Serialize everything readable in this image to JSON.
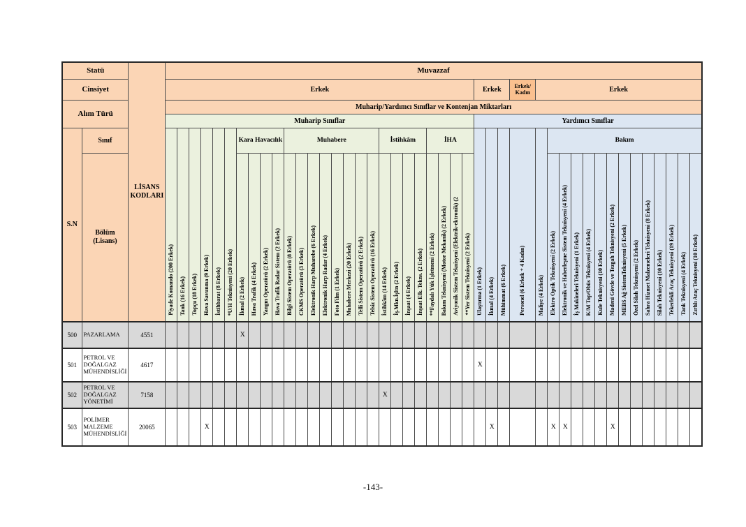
{
  "page": {
    "number_label": "-143-"
  },
  "colors": {
    "header_orange": "#FBD5B5",
    "header_orange_dark": "#FAC08F",
    "muharip_green": "#EBF1DE",
    "yardimci_blue": "#DCE6F2",
    "shaded_row_gray": "#D9D9D9"
  },
  "table": {
    "corner": {
      "statu_label": "Statü",
      "cinsiyet_label": "Cinsiyet",
      "alim_turu_label": "Alım Türü",
      "sinif_label": "Sınıf",
      "sn_label": "S.N",
      "bolum_label": "Bölüm\n(Lisans)",
      "lisans_kodlari_label": "LİSANS\nKODLARI"
    },
    "statu_value": "Muvazzaf",
    "cinsiyet_groups": [
      {
        "label": "Erkek",
        "span": 26,
        "variant": "light"
      },
      {
        "label": "Erkek",
        "span": 3,
        "variant": "light"
      },
      {
        "label": "Erkek/\nKadın",
        "span": 1,
        "variant": "dark"
      },
      {
        "label": "Erkek",
        "span": 14,
        "variant": "light"
      }
    ],
    "alim_turu_value": "Muharip/Yardımcı Sınıflar ve Kontenjan Miktarları",
    "class_bands": [
      {
        "label": "Muharip Sınıflar",
        "span": 26,
        "band": "green"
      },
      {
        "label": "Yardımcı Sınıflar",
        "span": 18,
        "band": "blue"
      }
    ],
    "columns": [
      {
        "label": "Piyade Komando  (200 Erkek)",
        "band": "green",
        "group": null
      },
      {
        "label": "Tank  (16 Erkek)",
        "band": "green",
        "group": null
      },
      {
        "label": "Topçu  (18 Erkek)",
        "band": "green",
        "group": null
      },
      {
        "label": "Hava Savunma (9 Erkek)",
        "band": "green",
        "group": null
      },
      {
        "label": "İstihbarat (8 Erkek)",
        "band": "green",
        "group": null
      },
      {
        "label": "*U/H Teknisyeni (20 Erkek)",
        "band": "green",
        "group": null
      },
      {
        "label": "İkmal (2 Erkek)",
        "band": "green",
        "group": "Kara Havacılık"
      },
      {
        "label": "Hava Trafik  (4 Erkek)",
        "band": "green",
        "group": "Kara Havacılık"
      },
      {
        "label": "Yangın Operatörü  (2 Erkek)",
        "band": "green",
        "group": "Kara Havacılık"
      },
      {
        "label": "Hava Trafik Radar Sistem (2 Erkek)",
        "band": "green",
        "group": "Kara Havacılık"
      },
      {
        "label": "Bilgi Sistem Operatörü  (8 Erkek)",
        "band": "green",
        "group": "Muhabere"
      },
      {
        "label": "CKMS Operatörü   (3 Erkek)",
        "band": "green",
        "group": "Muhabere"
      },
      {
        "label": "Elektronik Harp Muharebe (6 Erkek)",
        "band": "green",
        "group": "Muhabere"
      },
      {
        "label": "Elektronik Harp Radar   (4 Erkek)",
        "band": "green",
        "group": "Muhabere"
      },
      {
        "label": "Foto Film (1 Erkek)",
        "band": "green",
        "group": "Muhabere"
      },
      {
        "label": "Muhabere Merkezi (20 Erkek)",
        "band": "green",
        "group": "Muhabere"
      },
      {
        "label": "Telli Sistem Operatörü (2 Erkek)",
        "band": "green",
        "group": "Muhabere"
      },
      {
        "label": "Telsiz Sistem Operatörü  (16 Erkek)",
        "band": "green",
        "group": "Muhabere"
      },
      {
        "label": "İstihkâm (14 Erkek)",
        "band": "green",
        "group": "İstihkâm"
      },
      {
        "label": "İş.Mkn.İşltn (2 Erkek)",
        "band": "green",
        "group": "İstihkâm"
      },
      {
        "label": "İnşaat  (4 Erkek)",
        "band": "green",
        "group": "İstihkâm"
      },
      {
        "label": "İnşaat Elk. Tekns.  (2 Erkek)",
        "band": "green",
        "group": "İstihkâm"
      },
      {
        "label": "**Faydalı Yük İşletmeni (2 Erkek)",
        "band": "green",
        "group": "İHA"
      },
      {
        "label": "Bakım Teknisyeni (Motor Mekanik) (2 Erkek)",
        "band": "green",
        "group": "İHA"
      },
      {
        "label": "Aviyonik Sistem Teknisyeni (Elektrik-ektronik) (2",
        "band": "green",
        "group": "İHA"
      },
      {
        "label": "**Yer Sistem Teknisyeni (2 Erkek)",
        "band": "green",
        "group": "İHA"
      },
      {
        "label": "Ulaştırma  (1 Erkek)",
        "band": "blue",
        "group": null
      },
      {
        "label": "İkmal  (4 Erkek)",
        "band": "blue",
        "group": null
      },
      {
        "label": "Mühimmat  (6 Erkek)",
        "band": "blue",
        "group": null
      },
      {
        "label": "Personel  (6 Erkek + 4 Kadın)",
        "band": "blue",
        "group": null,
        "wide": true
      },
      {
        "label": "Maliye  (4 Erkek)",
        "band": "blue",
        "group": null
      },
      {
        "label": "Elektro Optik Teknisyeni  (2 Erkek)",
        "band": "blue",
        "group": "Bakım"
      },
      {
        "label": "Elektronik ve Haberleşme Sistem Teknisyeni  (4 Erkek)",
        "band": "blue",
        "group": "Bakım"
      },
      {
        "label": "İş Makineleri Teknisyeni (1 Erkek)",
        "band": "blue",
        "group": "Bakım"
      },
      {
        "label": "K/M Top/Obüs  Teknisyeni (4 Erkek)",
        "band": "blue",
        "group": "Bakım"
      },
      {
        "label": "Kule Teknisyeni  (10 Erkek)",
        "band": "blue",
        "group": "Bakım"
      },
      {
        "label": "Madeni Gövde ve Tezgah Teknisyeni  (2 Erkek)",
        "band": "blue",
        "group": "Bakım"
      },
      {
        "label": "MEBS Ağ SistemTeknisyeni (5 Erkek)",
        "band": "blue",
        "group": "Bakım"
      },
      {
        "label": "Özel Silah Teknisyeni (2 Erkek)",
        "band": "blue",
        "group": "Bakım"
      },
      {
        "label": "Sahra Hizmet  Malzemeleri Teknisyeni  (8 Erkek)",
        "band": "blue",
        "group": "Bakım"
      },
      {
        "label": "Silah Teknisyeni (10 Erkek)",
        "band": "blue",
        "group": "Bakım"
      },
      {
        "label": "Tekerlekli Araç Teknisyeni  (19 Erkek)",
        "band": "blue",
        "group": "Bakım"
      },
      {
        "label": "Tank Teknisyeni  (4 Erkek)",
        "band": "blue",
        "group": "Bakım"
      },
      {
        "label": "Zırhlı Araç Teknisyeni  (10 Erkek)",
        "band": "blue",
        "group": "Bakım"
      }
    ],
    "mark_symbol": "X",
    "rows": [
      {
        "sn": "500",
        "bolum": "PAZARLAMA",
        "lisans_kodu": "4551",
        "shaded": true,
        "marks": [
          7
        ]
      },
      {
        "sn": "501",
        "bolum": "PETROL VE DOĞALGAZ MÜHENDİSLİĞİ",
        "lisans_kodu": "4617",
        "shaded": false,
        "marks": [
          27
        ]
      },
      {
        "sn": "502",
        "bolum": "PETROL VE DOĞALGAZ YÖNETİMİ",
        "lisans_kodu": "7158",
        "shaded": true,
        "marks": [
          19
        ]
      },
      {
        "sn": "503",
        "bolum": "POLİMER MALZEME MÜHENDİSLİĞİ",
        "lisans_kodu": "20065",
        "shaded": false,
        "marks": [
          4,
          28,
          32,
          33,
          37
        ]
      }
    ]
  }
}
